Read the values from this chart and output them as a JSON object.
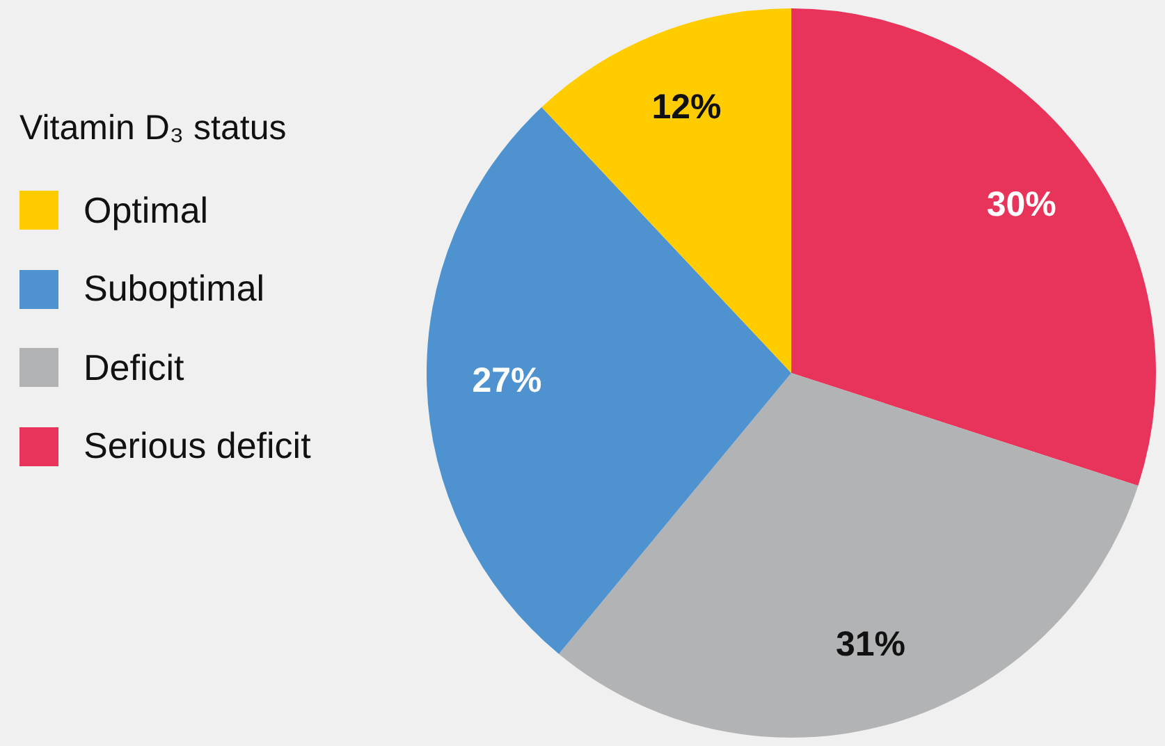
{
  "chart_data": {
    "type": "pie",
    "legend_title": "Vitamin D₃ status",
    "legend": "left",
    "categories": [
      "Optimal",
      "Suboptimal",
      "Deficit",
      "Serious deficit"
    ],
    "values": [
      12,
      27,
      31,
      30
    ],
    "colors": [
      "#ffcc00",
      "#4f92d0",
      "#b1b3b4",
      "#e8345a"
    ],
    "value_labels": [
      "12%",
      "27%",
      "31%",
      "30%"
    ]
  }
}
